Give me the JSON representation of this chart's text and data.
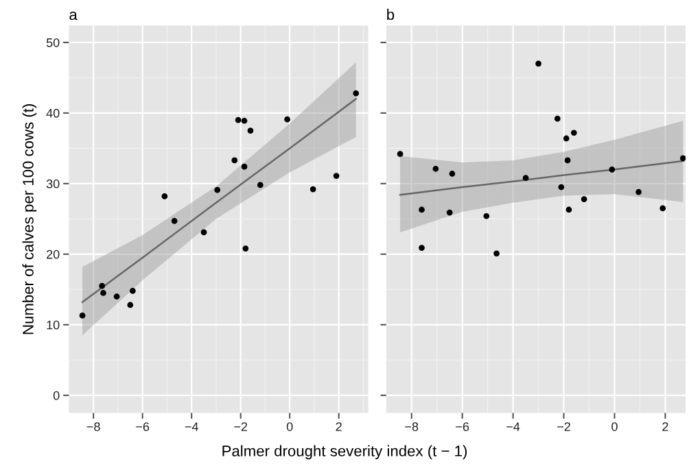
{
  "chart_data": [
    {
      "type": "scatter",
      "title": "a",
      "xlabel": "Palmer drought severity index (t − 1)",
      "ylabel": "Number of calves per 100 cows (t)",
      "xlim": [
        -9.0,
        3.2
      ],
      "ylim": [
        -2.5,
        52.4
      ],
      "xticks": [
        -8,
        -6,
        -4,
        -2,
        0,
        2
      ],
      "yticks": [
        0,
        10,
        20,
        30,
        40,
        50
      ],
      "grid": true,
      "series": [
        {
          "marker": "circle",
          "color": "#000000",
          "x": [
            -8.45,
            -7.65,
            -7.6,
            -7.05,
            -6.5,
            -6.4,
            -5.1,
            -4.7,
            -3.5,
            -2.95,
            -2.25,
            -2.1,
            -1.85,
            -1.85,
            -1.8,
            -1.6,
            -1.2,
            -0.1,
            0.95,
            1.9,
            2.7
          ],
          "values": [
            11.3,
            15.5,
            14.5,
            14.0,
            12.8,
            14.8,
            28.2,
            24.7,
            23.1,
            29.1,
            33.3,
            39.0,
            38.9,
            32.4,
            20.8,
            37.5,
            29.8,
            39.1,
            29.2,
            31.1,
            42.8
          ]
        },
        {
          "type": "line",
          "marker": "none",
          "color": "#666666",
          "x": [
            -8.45,
            -6,
            -3,
            0,
            2.7
          ],
          "values": [
            13.2,
            19.5,
            27.3,
            35.0,
            42.0
          ],
          "lower": [
            8.5,
            16.3,
            25.0,
            31.6,
            36.6
          ],
          "upper": [
            18.2,
            22.7,
            29.6,
            38.5,
            47.2
          ]
        }
      ]
    },
    {
      "type": "scatter",
      "title": "b",
      "xlim": [
        -9.0,
        2.8
      ],
      "ylim": [
        -2.5,
        52.4
      ],
      "xticks": [
        -8,
        -6,
        -4,
        -2,
        0,
        2
      ],
      "yticks": [
        0,
        10,
        20,
        30,
        40,
        50
      ],
      "tick_labels": "x",
      "grid": true,
      "series": [
        {
          "marker": "circle",
          "color": "#000000",
          "x": [
            -8.45,
            -7.6,
            -7.6,
            -7.05,
            -6.5,
            -6.4,
            -5.05,
            -4.65,
            -3.5,
            -3.0,
            -2.25,
            -2.1,
            -1.9,
            -1.85,
            -1.8,
            -1.6,
            -1.2,
            -0.1,
            0.95,
            1.9,
            2.7
          ],
          "values": [
            34.2,
            26.3,
            20.9,
            32.1,
            25.9,
            31.4,
            25.4,
            20.1,
            30.8,
            47.0,
            39.2,
            29.5,
            36.4,
            33.3,
            26.3,
            37.2,
            27.8,
            32.0,
            28.8,
            26.5,
            33.6
          ]
        },
        {
          "type": "line",
          "marker": "none",
          "color": "#666666",
          "x": [
            -8.45,
            -6,
            -4,
            -2,
            0,
            2.7
          ],
          "values": [
            28.4,
            29.5,
            30.3,
            31.2,
            32.0,
            33.2
          ],
          "lower": [
            23.1,
            26.0,
            27.3,
            28.3,
            28.5,
            27.4
          ],
          "upper": [
            33.9,
            33.0,
            33.3,
            34.5,
            36.2,
            38.9
          ]
        }
      ]
    }
  ]
}
